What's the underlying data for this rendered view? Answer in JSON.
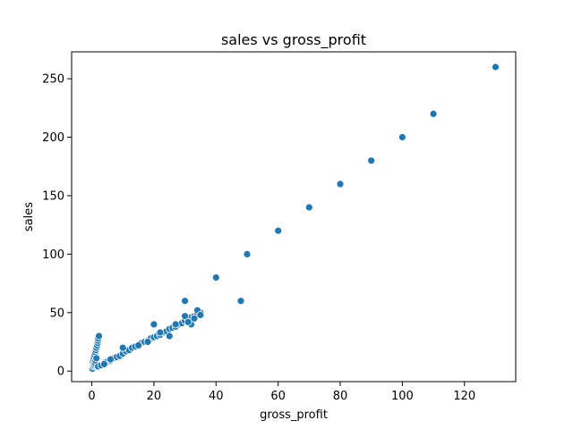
{
  "chart_data": {
    "type": "scatter",
    "title": "sales vs gross_profit",
    "xlabel": "gross_profit",
    "ylabel": "sales",
    "xlim": [
      -6.5,
      136.5
    ],
    "ylim": [
      -9,
      273
    ],
    "xticks": [
      0,
      20,
      40,
      60,
      80,
      100,
      120
    ],
    "yticks": [
      0,
      50,
      100,
      150,
      200,
      250
    ],
    "grid": false,
    "marker_color": "#1f77b4",
    "series": [
      {
        "x": [
          130,
          110,
          100,
          90,
          80,
          70,
          60,
          50,
          40,
          48,
          30,
          0.3,
          0.5,
          0.7,
          0.9,
          1.1,
          1.3,
          1.5,
          1.7,
          1.9,
          2.0,
          2.1,
          2.3,
          0.2,
          0.4,
          0.6,
          0.8,
          1.0,
          1.2,
          1.5,
          2,
          3,
          4,
          5,
          6,
          7,
          8,
          9,
          10,
          11,
          12,
          13,
          14,
          15,
          16,
          17,
          18,
          19,
          20,
          21,
          22,
          23,
          24,
          25,
          26,
          27,
          28,
          29,
          30,
          31,
          32,
          33,
          34,
          35,
          10,
          20,
          32,
          25,
          15,
          30,
          34,
          35,
          33,
          31,
          27,
          22,
          18,
          6,
          4
        ],
        "y": [
          260,
          220,
          200,
          180,
          160,
          140,
          120,
          100,
          80,
          60,
          60,
          8,
          10,
          12,
          14,
          16,
          18,
          20,
          22,
          24,
          26,
          28,
          30,
          2,
          4,
          5,
          6,
          7,
          9,
          11,
          4,
          5,
          7,
          8,
          9,
          11,
          12,
          13,
          15,
          17,
          18,
          20,
          21,
          22,
          24,
          25,
          26,
          28,
          29,
          30,
          31,
          33,
          34,
          36,
          37,
          38,
          40,
          41,
          43,
          44,
          46,
          47,
          49,
          50,
          20,
          40,
          40,
          30,
          22,
          47,
          52,
          48,
          45,
          42,
          40,
          33,
          25,
          10,
          6
        ]
      }
    ]
  }
}
